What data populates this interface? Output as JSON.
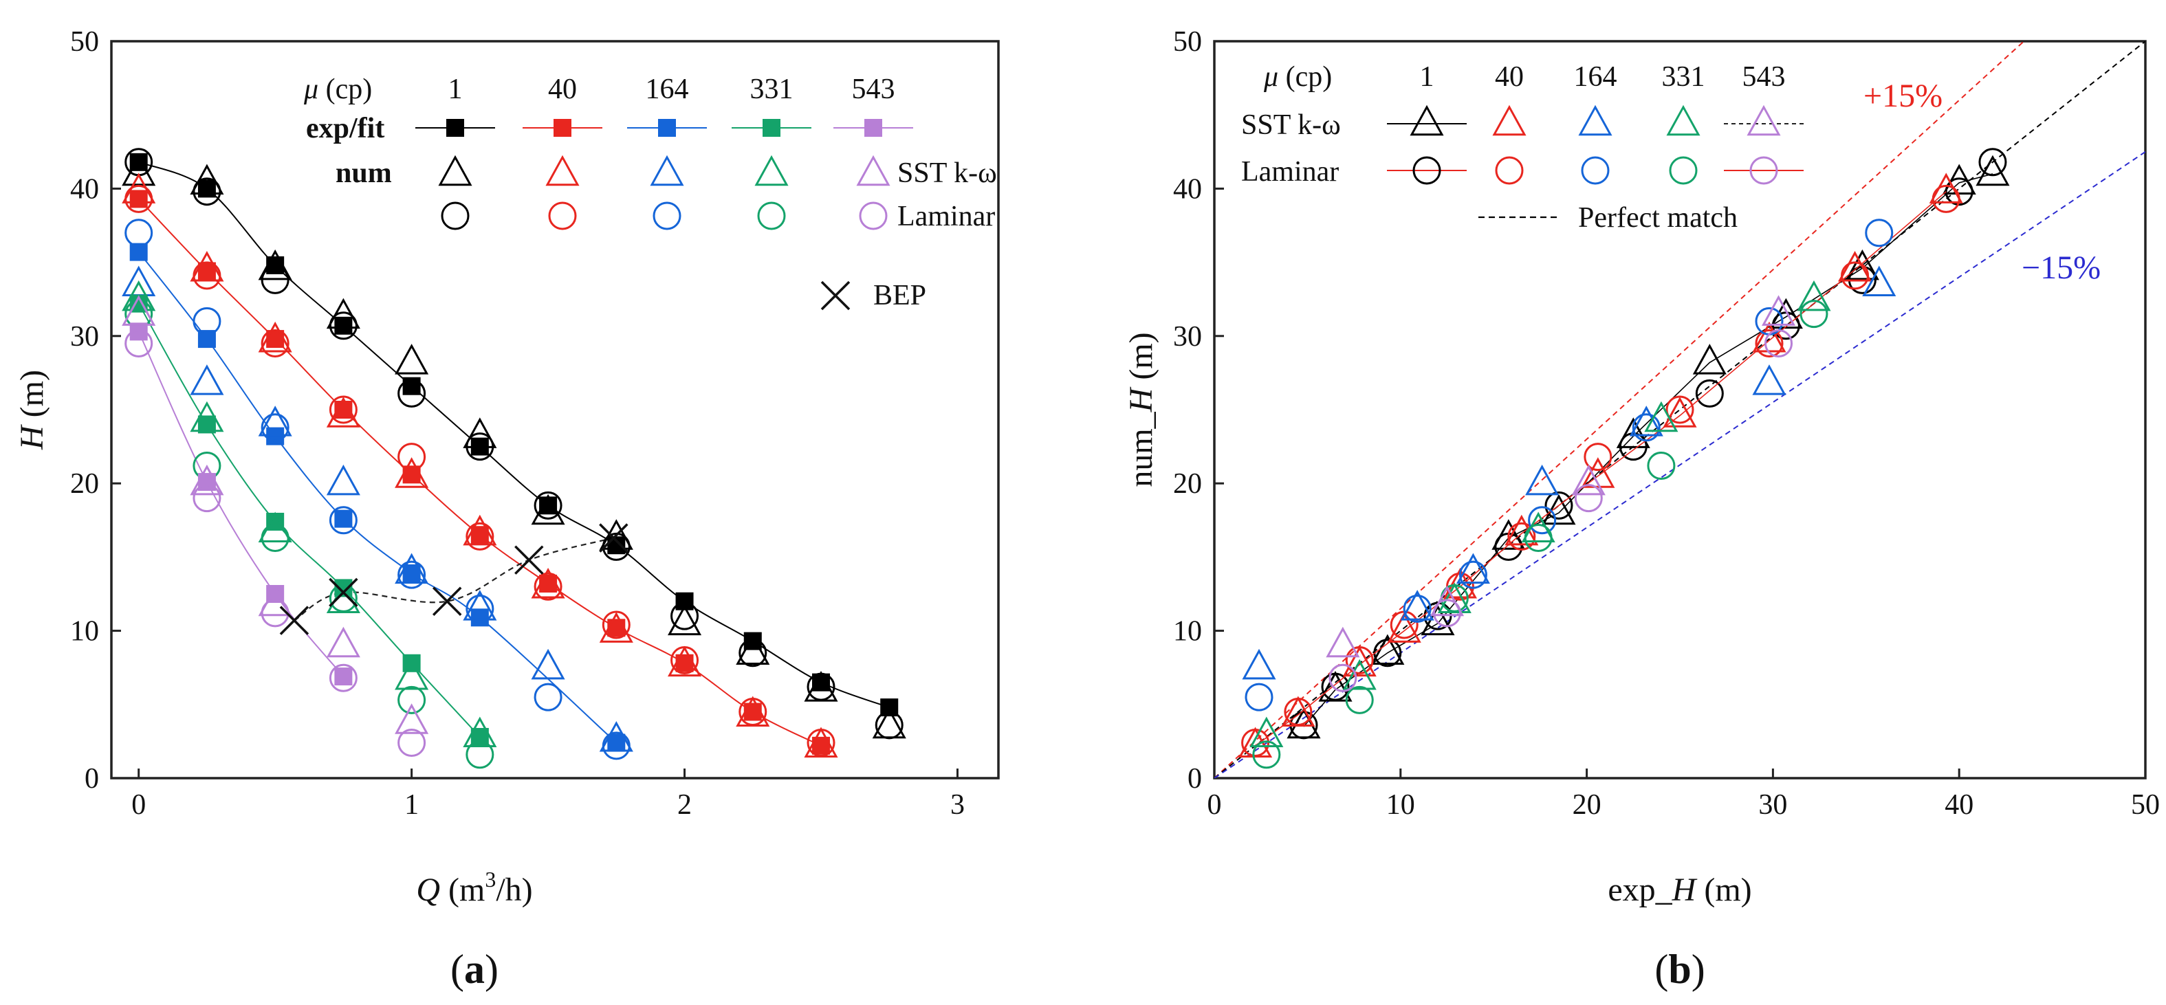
{
  "chart_data": [
    {
      "type": "scatter",
      "panel_label": "(a)",
      "xlabel": "Q (m3/h)",
      "xlabel_parts": {
        "var": "Q",
        "unit_pre": " (m",
        "unit_sup": "3",
        "unit_post": "/h)"
      },
      "ylabel": "H (m)",
      "ylabel_parts": {
        "var": "H",
        "unit": " (m)"
      },
      "xlim": [
        -0.1,
        3.15
      ],
      "ylim": [
        0,
        50
      ],
      "xticks": [
        0,
        1,
        2,
        3
      ],
      "yticks": [
        0,
        10,
        20,
        30,
        40,
        50
      ],
      "legend": {
        "mu_label": "μ (cp)",
        "viscosities": [
          "1",
          "40",
          "164",
          "331",
          "543"
        ],
        "row_labels": [
          "exp/fit",
          "num"
        ],
        "sst_label": "SST k-ω",
        "laminar_label": "Laminar",
        "bep_label": "BEP"
      },
      "series": [
        {
          "name": "1",
          "color": "#000000",
          "exp": {
            "x": [
              0,
              0.25,
              0.5,
              0.75,
              1.0,
              1.25,
              1.5,
              1.75,
              2.0,
              2.25,
              2.5,
              2.75
            ],
            "y": [
              41.8,
              40.0,
              34.8,
              30.7,
              26.6,
              22.5,
              18.5,
              15.8,
              12.0,
              9.3,
              6.5,
              4.8
            ]
          },
          "sst": {
            "x": [
              0,
              0.25,
              0.5,
              0.75,
              1.0,
              1.25,
              1.5,
              1.75,
              2.0,
              2.25,
              2.5,
              2.75
            ],
            "y": [
              41.0,
              40.4,
              34.6,
              31.3,
              28.2,
              23.2,
              18.0,
              16.3,
              10.5,
              8.5,
              6.0,
              3.5
            ]
          },
          "laminar": {
            "x": [
              0,
              0.25,
              0.5,
              0.75,
              1.0,
              1.25,
              1.5,
              1.75,
              2.0,
              2.25,
              2.5,
              2.75
            ],
            "y": [
              41.8,
              39.8,
              33.8,
              30.7,
              26.1,
              22.5,
              18.5,
              15.7,
              11.0,
              8.5,
              6.2,
              3.6
            ]
          }
        },
        {
          "name": "40",
          "color": "#e8261f",
          "exp": {
            "x": [
              0,
              0.25,
              0.5,
              0.75,
              1.0,
              1.25,
              1.5,
              1.75,
              2.0,
              2.25,
              2.5
            ],
            "y": [
              39.3,
              34.4,
              29.8,
              25.0,
              20.6,
              16.5,
              13.2,
              10.2,
              7.8,
              4.5,
              2.2
            ]
          },
          "sst": {
            "x": [
              0,
              0.25,
              0.5,
              0.75,
              1.0,
              1.25,
              1.5,
              1.75,
              2.0,
              2.25,
              2.5
            ],
            "y": [
              39.8,
              34.5,
              29.7,
              24.6,
              20.5,
              16.6,
              13.0,
              10.0,
              7.7,
              4.3,
              2.2
            ]
          },
          "laminar": {
            "x": [
              0,
              0.25,
              0.5,
              0.75,
              1.0,
              1.25,
              1.5,
              1.75,
              2.0,
              2.25,
              2.5
            ],
            "y": [
              39.3,
              34.1,
              29.5,
              25.0,
              21.8,
              16.4,
              13.0,
              10.4,
              8.0,
              4.5,
              2.4
            ]
          }
        },
        {
          "name": "164",
          "color": "#1565d8",
          "exp": {
            "x": [
              0,
              0.25,
              0.5,
              0.75,
              1.0,
              1.25,
              1.75
            ],
            "y": [
              35.7,
              29.8,
              23.2,
              17.6,
              13.9,
              10.9,
              2.4
            ]
          },
          "sst": {
            "x": [
              0,
              0.25,
              0.5,
              0.75,
              1.0,
              1.25,
              1.5,
              1.75
            ],
            "y": [
              33.5,
              26.8,
              24.0,
              20.0,
              14.0,
              11.5,
              7.5,
              2.6
            ]
          },
          "laminar": {
            "x": [
              0,
              0.25,
              0.5,
              0.75,
              1.0,
              1.25,
              1.5,
              1.75
            ],
            "y": [
              37.0,
              31.0,
              23.8,
              17.5,
              13.8,
              11.5,
              5.5,
              2.2
            ]
          }
        },
        {
          "name": "331",
          "color": "#14a36a",
          "exp": {
            "x": [
              0,
              0.25,
              0.5,
              0.75,
              1.0,
              1.25
            ],
            "y": [
              32.2,
              24.0,
              17.4,
              12.9,
              7.8,
              2.8
            ]
          },
          "sst": {
            "x": [
              0,
              0.25,
              0.5,
              0.75,
              1.0,
              1.25
            ],
            "y": [
              32.5,
              24.3,
              16.8,
              12.0,
              6.8,
              2.9
            ]
          },
          "laminar": {
            "x": [
              0,
              0.25,
              0.5,
              0.75,
              1.0,
              1.25
            ],
            "y": [
              31.5,
              21.2,
              16.3,
              12.2,
              5.3,
              1.6
            ]
          }
        },
        {
          "name": "543",
          "color": "#b77fd6",
          "exp": {
            "x": [
              0,
              0.25,
              0.5,
              0.75
            ],
            "y": [
              30.3,
              20.1,
              12.5,
              6.9
            ]
          },
          "sst": {
            "x": [
              0,
              0.25,
              0.5,
              0.75,
              1.0
            ],
            "y": [
              31.5,
              20.0,
              11.8,
              9.0,
              3.8
            ]
          },
          "laminar": {
            "x": [
              0,
              0.25,
              0.5,
              0.75,
              1.0
            ],
            "y": [
              29.5,
              19.0,
              11.2,
              6.8,
              2.4
            ]
          }
        }
      ],
      "bep": {
        "x": [
          0.57,
          0.75,
          1.13,
          1.43,
          1.74
        ],
        "y": [
          10.7,
          12.6,
          12.0,
          14.8,
          16.3
        ]
      }
    },
    {
      "type": "scatter",
      "panel_label": "(b)",
      "xlabel": "exp_H (m)",
      "xlabel_parts": {
        "pre": "exp_",
        "var": "H",
        "unit": " (m)"
      },
      "ylabel": "num_H (m)",
      "ylabel_parts": {
        "pre": "num_",
        "var": "H",
        "unit": " (m)"
      },
      "xlim": [
        0,
        50
      ],
      "ylim": [
        0,
        50
      ],
      "xticks": [
        0,
        10,
        20,
        30,
        40,
        50
      ],
      "yticks": [
        0,
        10,
        20,
        30,
        40,
        50
      ],
      "legend": {
        "mu_label": "μ (cp)",
        "viscosities": [
          "1",
          "40",
          "164",
          "331",
          "543"
        ],
        "sst_label": "SST k-ω",
        "laminar_label": "Laminar",
        "perfect_label": "Perfect match"
      },
      "band_labels": {
        "upper": "+15%",
        "lower": "−15%"
      },
      "band_colors": {
        "upper": "#e8261f",
        "lower": "#2b2bd0",
        "perfect": "#000000"
      }
    }
  ]
}
